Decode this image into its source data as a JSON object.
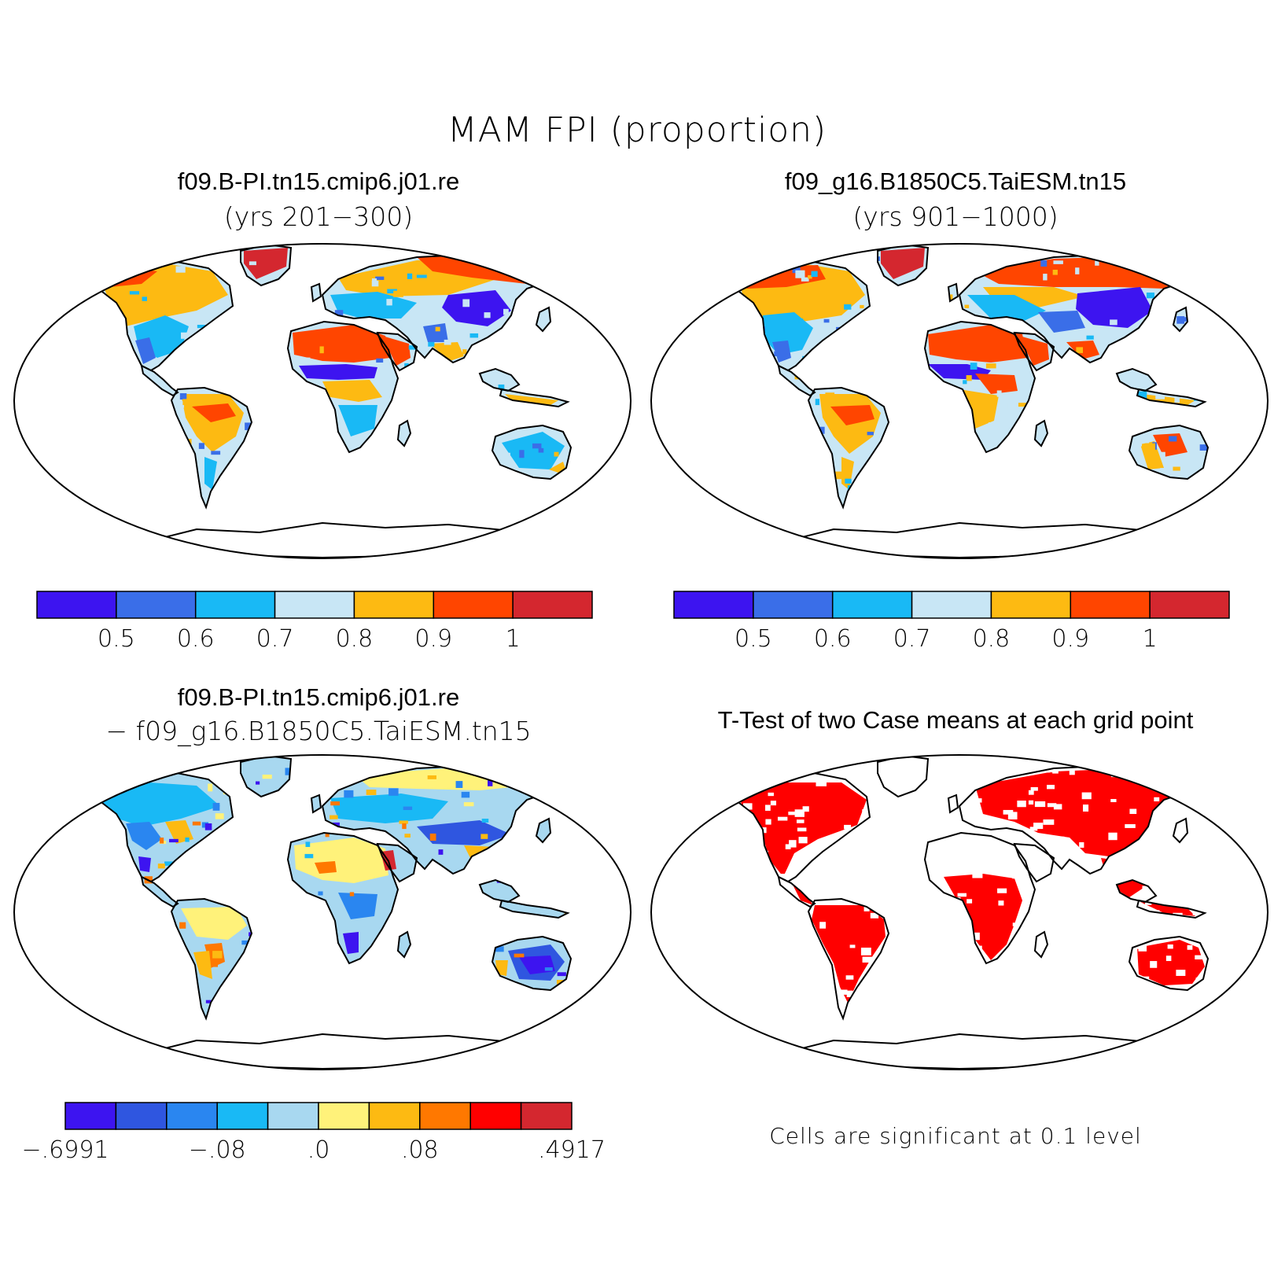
{
  "title": "MAM FPI (proportion)",
  "panels": [
    {
      "id": "p1",
      "title": "f09.B-PI.tn15.cmip6.j01.re",
      "subtitle": "(yrs 201−300)"
    },
    {
      "id": "p2",
      "title": "f09_g16.B1850C5.TaiESM.tn15",
      "subtitle": "(yrs 901−1000)"
    },
    {
      "id": "p3",
      "title": "f09.B-PI.tn15.cmip6.j01.re",
      "subtitle": "− f09_g16.B1850C5.TaiESM.tn15"
    },
    {
      "id": "p4",
      "title": "T-Test of two Case means at each grid point",
      "subtitle": ""
    }
  ],
  "colorbar_main": {
    "colors": [
      "#3d14f0",
      "#3a6ee8",
      "#19b9f5",
      "#c8e6f5",
      "#fdba12",
      "#ff4500",
      "#d4272f"
    ],
    "labels": [
      "0.5",
      "0.6",
      "0.7",
      "0.8",
      "0.9",
      "1"
    ]
  },
  "colorbar_diff": {
    "colors": [
      "#3d14f0",
      "#2f56e0",
      "#2a86f0",
      "#19b9f5",
      "#a8d8f0",
      "#fff27a",
      "#fdba12",
      "#ff7800",
      "#ff0000",
      "#d4272f"
    ],
    "labels": [
      "−.6991",
      "−.08",
      ".0",
      ".08",
      ".4917"
    ]
  },
  "significance_color": "#ff0000",
  "note": "Cells are significant at 0.1 level"
}
